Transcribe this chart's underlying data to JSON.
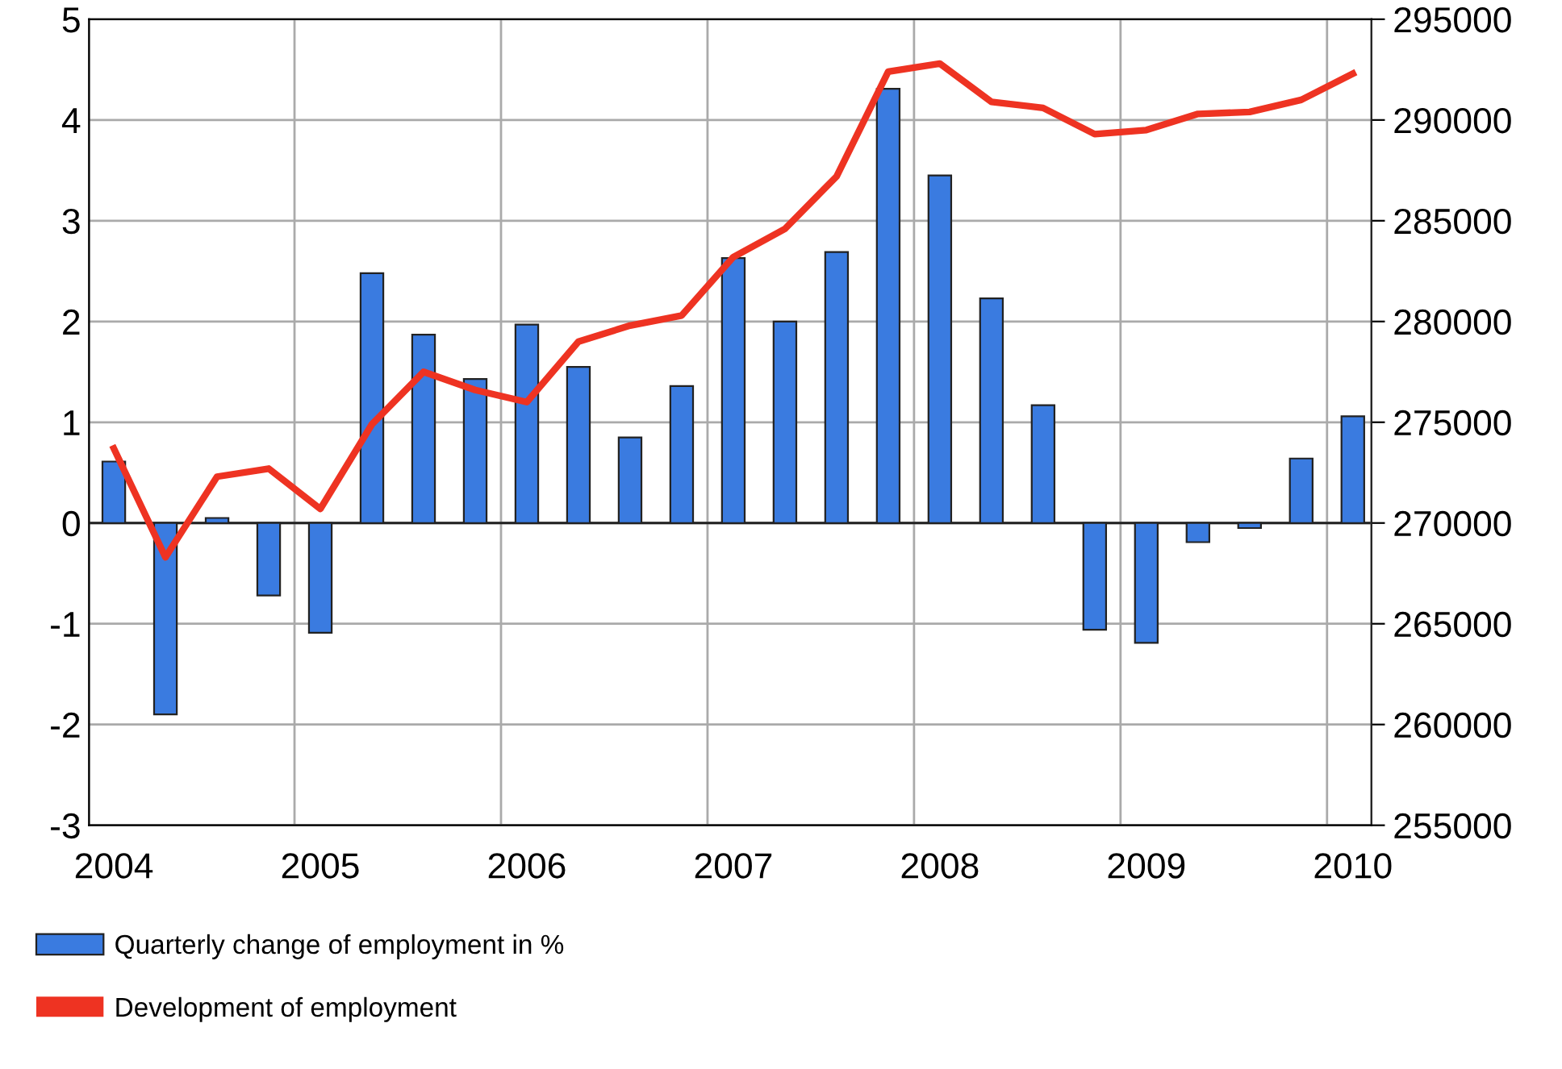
{
  "chart_data": {
    "type": "bar",
    "x": [
      2004,
      2004.25,
      2004.5,
      2004.75,
      2005,
      2005.25,
      2005.5,
      2005.75,
      2006,
      2006.25,
      2006.5,
      2006.75,
      2007,
      2007.25,
      2007.5,
      2007.75,
      2008,
      2008.25,
      2008.5,
      2008.75,
      2009,
      2009.25,
      2009.5,
      2009.75,
      2010
    ],
    "series": [
      {
        "name": "Quarterly change of employment in %",
        "color": "#3a7be0",
        "values": [
          0.61,
          -1.9,
          0.05,
          -0.72,
          -1.09,
          2.48,
          1.87,
          1.43,
          1.97,
          1.55,
          0.85,
          1.36,
          2.63,
          2.0,
          2.69,
          4.31,
          3.45,
          2.23,
          1.17,
          -1.06,
          -1.19,
          -0.19,
          -0.05,
          0.64,
          1.06
        ]
      },
      {
        "name": "Development of employment",
        "type": "line",
        "axis": "y2",
        "color": "#ee3322",
        "values": [
          273700,
          268300,
          272300,
          272700,
          270700,
          274900,
          277500,
          276600,
          276000,
          279000,
          279800,
          280300,
          283200,
          284600,
          287200,
          292400,
          292800,
          290900,
          290600,
          289300,
          289500,
          290300,
          290400,
          291000,
          292300
        ]
      }
    ],
    "xlim": [
      2003.88,
      2010.09
    ],
    "xticks": [
      2004,
      2005,
      2006,
      2007,
      2008,
      2009,
      2010,
      {
        "value": 2004.875,
        "label": null
      },
      {
        "value": 2005.875,
        "label": null
      },
      {
        "value": 2006.875,
        "label": null
      },
      {
        "value": 2007.875,
        "label": null
      },
      {
        "value": 2008.875,
        "label": null
      },
      {
        "value": 2009.875,
        "label": null
      }
    ],
    "ylim": [
      -3,
      5
    ],
    "yticks": [
      -3,
      -2,
      -1,
      0,
      1,
      2,
      3,
      4,
      5
    ],
    "y2lim": [
      255000,
      295000
    ],
    "y2ticks": [
      255000,
      260000,
      265000,
      270000,
      275000,
      280000,
      285000,
      290000,
      295000
    ],
    "grid": true,
    "legend": "bottom",
    "marker": "none",
    "line_style": "solid"
  }
}
